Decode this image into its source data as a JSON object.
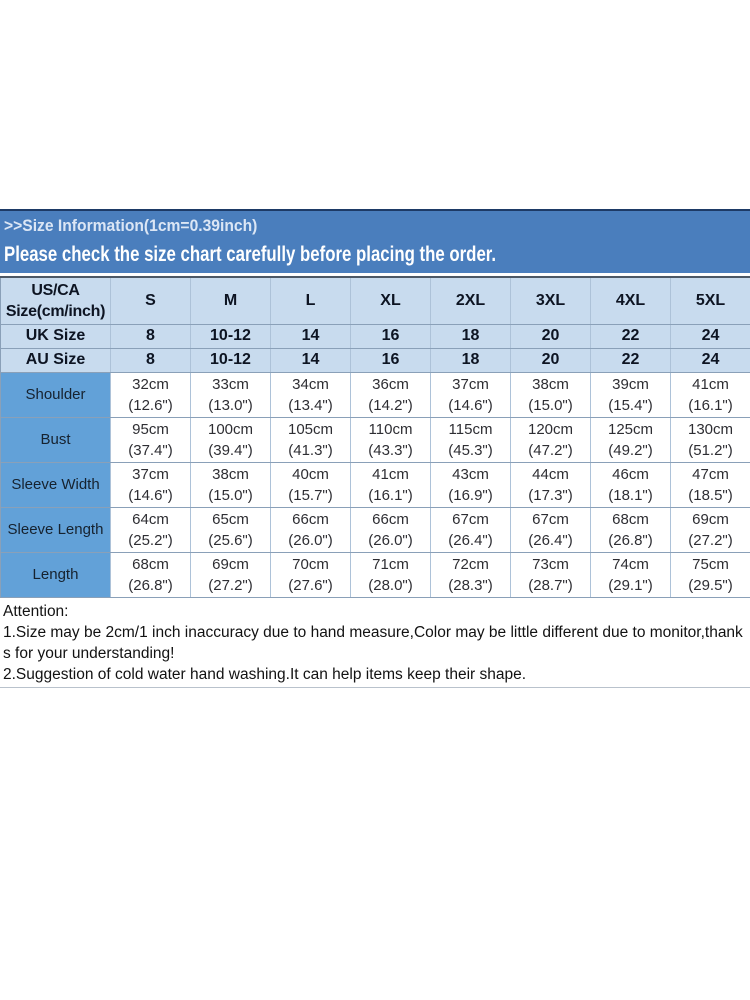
{
  "banner": {
    "title": ">>Size Information(1cm=0.39inch)",
    "subtitle": "Please check the size chart carefully before placing the order."
  },
  "size_chart": {
    "corner_header": "US/CA\nSize(cm/inch)",
    "sizes": [
      "S",
      "M",
      "L",
      "XL",
      "2XL",
      "3XL",
      "4XL",
      "5XL"
    ],
    "uk": {
      "label": "UK Size",
      "values": [
        "8",
        "10-12",
        "14",
        "16",
        "18",
        "20",
        "22",
        "24"
      ]
    },
    "au": {
      "label": "AU Size",
      "values": [
        "8",
        "10-12",
        "14",
        "16",
        "18",
        "20",
        "22",
        "24"
      ]
    },
    "measurements": [
      {
        "label": "Shoulder",
        "values": [
          "32cm\n(12.6\")",
          "33cm\n(13.0\")",
          "34cm\n(13.4\")",
          "36cm\n(14.2\")",
          "37cm\n(14.6\")",
          "38cm\n(15.0\")",
          "39cm\n(15.4\")",
          "41cm\n(16.1\")"
        ]
      },
      {
        "label": "Bust",
        "values": [
          "95cm\n(37.4\")",
          "100cm\n(39.4\")",
          "105cm\n(41.3\")",
          "110cm\n(43.3\")",
          "115cm\n(45.3\")",
          "120cm\n(47.2\")",
          "125cm\n(49.2\")",
          "130cm\n(51.2\")"
        ]
      },
      {
        "label": "Sleeve Width",
        "values": [
          "37cm\n(14.6\")",
          "38cm\n(15.0\")",
          "40cm\n(15.7\")",
          "41cm\n(16.1\")",
          "43cm\n(16.9\")",
          "44cm\n(17.3\")",
          "46cm\n(18.1\")",
          "47cm\n(18.5\")"
        ]
      },
      {
        "label": "Sleeve Length",
        "values": [
          "64cm\n(25.2\")",
          "65cm\n(25.6\")",
          "66cm\n(26.0\")",
          "66cm\n(26.0\")",
          "67cm\n(26.4\")",
          "67cm\n(26.4\")",
          "68cm\n(26.8\")",
          "69cm\n(27.2\")"
        ]
      },
      {
        "label": "Length",
        "values": [
          "68cm\n(26.8\")",
          "69cm\n(27.2\")",
          "70cm\n(27.6\")",
          "71cm\n(28.0\")",
          "72cm\n(28.3\")",
          "73cm\n(28.7\")",
          "74cm\n(29.1\")",
          "75cm\n(29.5\")"
        ]
      }
    ]
  },
  "attention": {
    "title": "Attention:",
    "notes": [
      "1.Size may be 2cm/1 inch inaccuracy due to hand measure,Color may be little different due to monitor,thanks for your understanding!",
      "2.Suggestion of cold water hand washing.It can help items keep their shape."
    ]
  },
  "colors": {
    "banner_bg": "#4a7ebd",
    "banner_top_line": "#1d3a66",
    "header_bg": "#c8dbee",
    "corner_bg": "#d3e2f3",
    "label_bg": "#62a1d8",
    "grid_line": "#8aa0b8"
  }
}
